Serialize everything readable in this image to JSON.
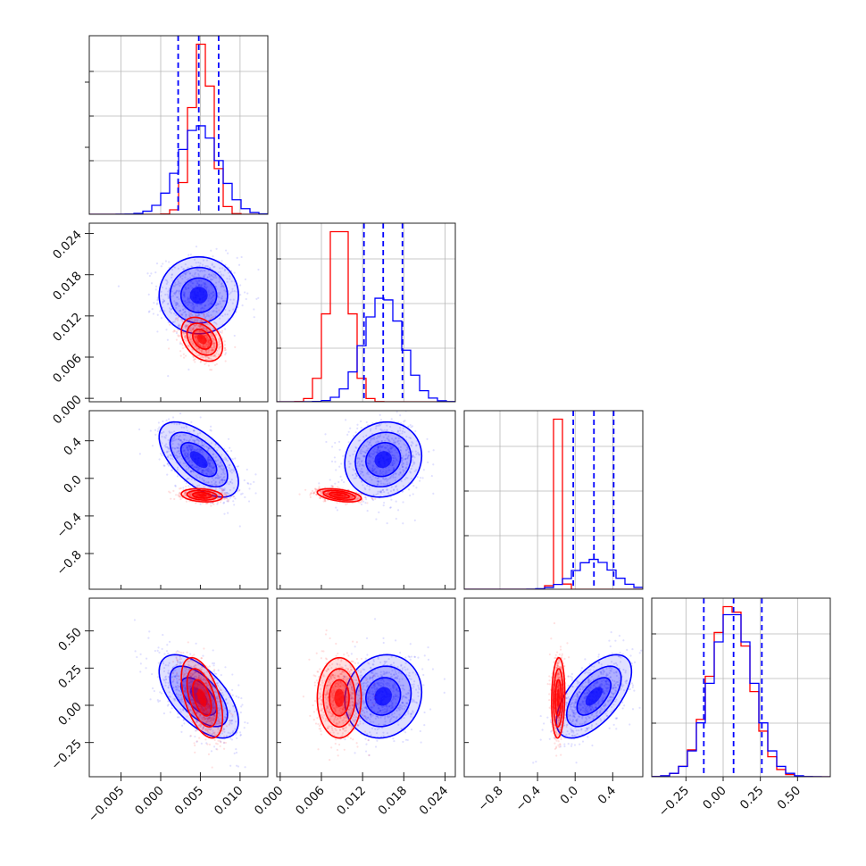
{
  "chart_data": {
    "type": "corner",
    "params": [
      {
        "range": [
          -0.009,
          0.0135
        ],
        "ticks": [
          -0.005,
          0.0,
          0.005,
          0.01
        ],
        "tick_labels": [
          "−0.005",
          "0.000",
          "0.005",
          "0.010"
        ]
      },
      {
        "range": [
          -0.0005,
          0.0255
        ],
        "ticks": [
          0.0,
          0.006,
          0.012,
          0.018,
          0.024
        ],
        "tick_labels": [
          "0.000",
          "0.006",
          "0.012",
          "0.018",
          "0.024"
        ]
      },
      {
        "range": [
          -1.18,
          0.72
        ],
        "ticks": [
          -0.8,
          -0.4,
          0.0,
          0.4
        ],
        "tick_labels": [
          "−0.8",
          "−0.4",
          "0.0",
          "0.4"
        ]
      },
      {
        "range": [
          -0.48,
          0.72
        ],
        "ticks": [
          -0.25,
          0.0,
          0.25,
          0.5
        ],
        "tick_labels": [
          "−0.25",
          "0.00",
          "0.25",
          "0.50"
        ]
      }
    ],
    "series": [
      {
        "color": "#ff0000",
        "mean": [
          0.0052,
          0.0086,
          -0.18,
          0.05
        ],
        "std": [
          0.0013,
          0.0016,
          0.035,
          0.135
        ],
        "corr": {
          "0-1": -0.35,
          "0-2": -0.2,
          "0-3": -0.5,
          "1-2": -0.45,
          "1-3": 0.0,
          "2-3": 0.1
        }
      },
      {
        "color": "#0000ff",
        "mean": [
          0.0048,
          0.015,
          0.2,
          0.06
        ],
        "std": [
          0.0025,
          0.0028,
          0.2,
          0.14
        ],
        "corr": {
          "0-1": 0.0,
          "0-2": -0.6,
          "0-3": -0.6,
          "1-2": 0.1,
          "1-3": 0.1,
          "2-3": 0.6
        }
      }
    ],
    "quantile_lines": {
      "color": "#0000ff",
      "style": "dashed",
      "values": [
        [
          0.0022,
          0.0048,
          0.0073
        ],
        [
          0.0122,
          0.015,
          0.0178
        ],
        [
          -0.02,
          0.2,
          0.41
        ],
        [
          -0.13,
          0.07,
          0.26
        ]
      ]
    },
    "grid": true
  }
}
